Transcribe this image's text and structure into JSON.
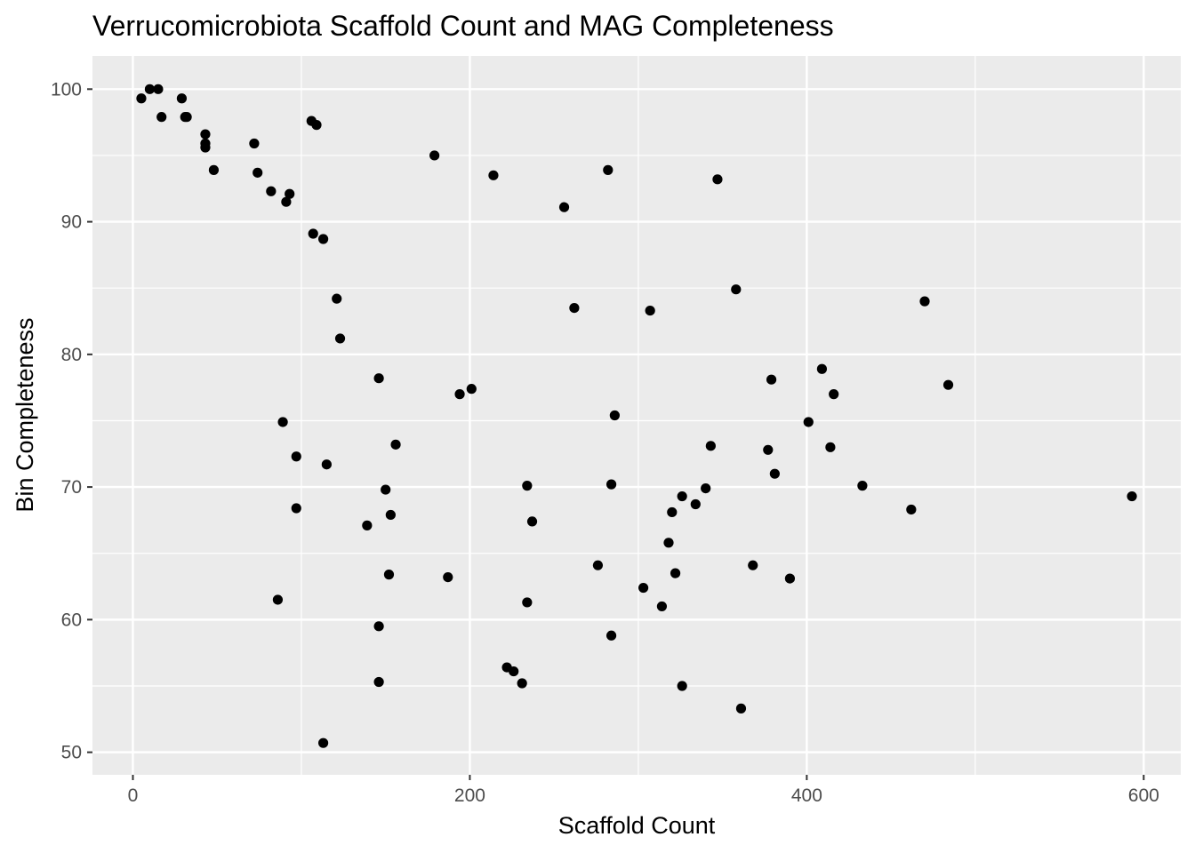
{
  "chart_data": {
    "type": "scatter",
    "title": "Verrucomicrobiota Scaffold Count and MAG Completeness",
    "xlabel": "Scaffold Count",
    "ylabel": "Bin Completeness",
    "xlim": [
      -24,
      622
    ],
    "ylim": [
      48.3,
      102.5
    ],
    "x_ticks": [
      0,
      200,
      400,
      600
    ],
    "x_tick_labels": [
      "0",
      "200",
      "400",
      "600"
    ],
    "y_ticks": [
      50,
      60,
      70,
      80,
      90,
      100
    ],
    "y_tick_labels": [
      "50",
      "60",
      "70",
      "80",
      "90",
      "100"
    ],
    "grid": true,
    "legend": "none",
    "colors": {
      "panel": "#ebebeb",
      "grid": "#ffffff",
      "point": "#000000",
      "tick": "#333333"
    },
    "points": [
      {
        "x": 5,
        "y": 99.3
      },
      {
        "x": 10,
        "y": 100.0
      },
      {
        "x": 15,
        "y": 100.0
      },
      {
        "x": 17,
        "y": 97.9
      },
      {
        "x": 29,
        "y": 99.3
      },
      {
        "x": 31,
        "y": 97.9
      },
      {
        "x": 32,
        "y": 97.9
      },
      {
        "x": 43,
        "y": 96.6
      },
      {
        "x": 43,
        "y": 95.9
      },
      {
        "x": 43,
        "y": 95.6
      },
      {
        "x": 48,
        "y": 93.9
      },
      {
        "x": 72,
        "y": 95.9
      },
      {
        "x": 74,
        "y": 93.7
      },
      {
        "x": 82,
        "y": 92.3
      },
      {
        "x": 91,
        "y": 91.5
      },
      {
        "x": 93,
        "y": 92.1
      },
      {
        "x": 106,
        "y": 97.6
      },
      {
        "x": 109,
        "y": 97.3
      },
      {
        "x": 107,
        "y": 89.1
      },
      {
        "x": 113,
        "y": 88.7
      },
      {
        "x": 121,
        "y": 84.2
      },
      {
        "x": 123,
        "y": 81.2
      },
      {
        "x": 179,
        "y": 95.0
      },
      {
        "x": 214,
        "y": 93.5
      },
      {
        "x": 256,
        "y": 91.1
      },
      {
        "x": 282,
        "y": 93.9
      },
      {
        "x": 347,
        "y": 93.2
      },
      {
        "x": 262,
        "y": 83.5
      },
      {
        "x": 307,
        "y": 83.3
      },
      {
        "x": 358,
        "y": 84.9
      },
      {
        "x": 470,
        "y": 84.0
      },
      {
        "x": 146,
        "y": 78.2
      },
      {
        "x": 194,
        "y": 77.0
      },
      {
        "x": 201,
        "y": 77.4
      },
      {
        "x": 379,
        "y": 78.1
      },
      {
        "x": 409,
        "y": 78.9
      },
      {
        "x": 416,
        "y": 77.0
      },
      {
        "x": 484,
        "y": 77.7
      },
      {
        "x": 89,
        "y": 74.9
      },
      {
        "x": 97,
        "y": 72.3
      },
      {
        "x": 115,
        "y": 71.7
      },
      {
        "x": 156,
        "y": 73.2
      },
      {
        "x": 286,
        "y": 75.4
      },
      {
        "x": 343,
        "y": 73.1
      },
      {
        "x": 377,
        "y": 72.8
      },
      {
        "x": 401,
        "y": 74.9
      },
      {
        "x": 414,
        "y": 73.0
      },
      {
        "x": 381,
        "y": 71.0
      },
      {
        "x": 97,
        "y": 68.4
      },
      {
        "x": 150,
        "y": 69.8
      },
      {
        "x": 153,
        "y": 67.9
      },
      {
        "x": 139,
        "y": 67.1
      },
      {
        "x": 234,
        "y": 70.1
      },
      {
        "x": 237,
        "y": 67.4
      },
      {
        "x": 284,
        "y": 70.2
      },
      {
        "x": 326,
        "y": 69.3
      },
      {
        "x": 340,
        "y": 69.9
      },
      {
        "x": 320,
        "y": 68.1
      },
      {
        "x": 334,
        "y": 68.7
      },
      {
        "x": 433,
        "y": 70.1
      },
      {
        "x": 462,
        "y": 68.3
      },
      {
        "x": 593,
        "y": 69.3
      },
      {
        "x": 318,
        "y": 65.8
      },
      {
        "x": 86,
        "y": 61.5
      },
      {
        "x": 152,
        "y": 63.4
      },
      {
        "x": 187,
        "y": 63.2
      },
      {
        "x": 276,
        "y": 64.1
      },
      {
        "x": 322,
        "y": 63.5
      },
      {
        "x": 368,
        "y": 64.1
      },
      {
        "x": 390,
        "y": 63.1
      },
      {
        "x": 234,
        "y": 61.3
      },
      {
        "x": 303,
        "y": 62.4
      },
      {
        "x": 314,
        "y": 61.0
      },
      {
        "x": 146,
        "y": 59.5
      },
      {
        "x": 284,
        "y": 58.8
      },
      {
        "x": 222,
        "y": 56.4
      },
      {
        "x": 226,
        "y": 56.1
      },
      {
        "x": 231,
        "y": 55.2
      },
      {
        "x": 146,
        "y": 55.3
      },
      {
        "x": 326,
        "y": 55.0
      },
      {
        "x": 361,
        "y": 53.3
      },
      {
        "x": 113,
        "y": 50.7
      }
    ]
  }
}
